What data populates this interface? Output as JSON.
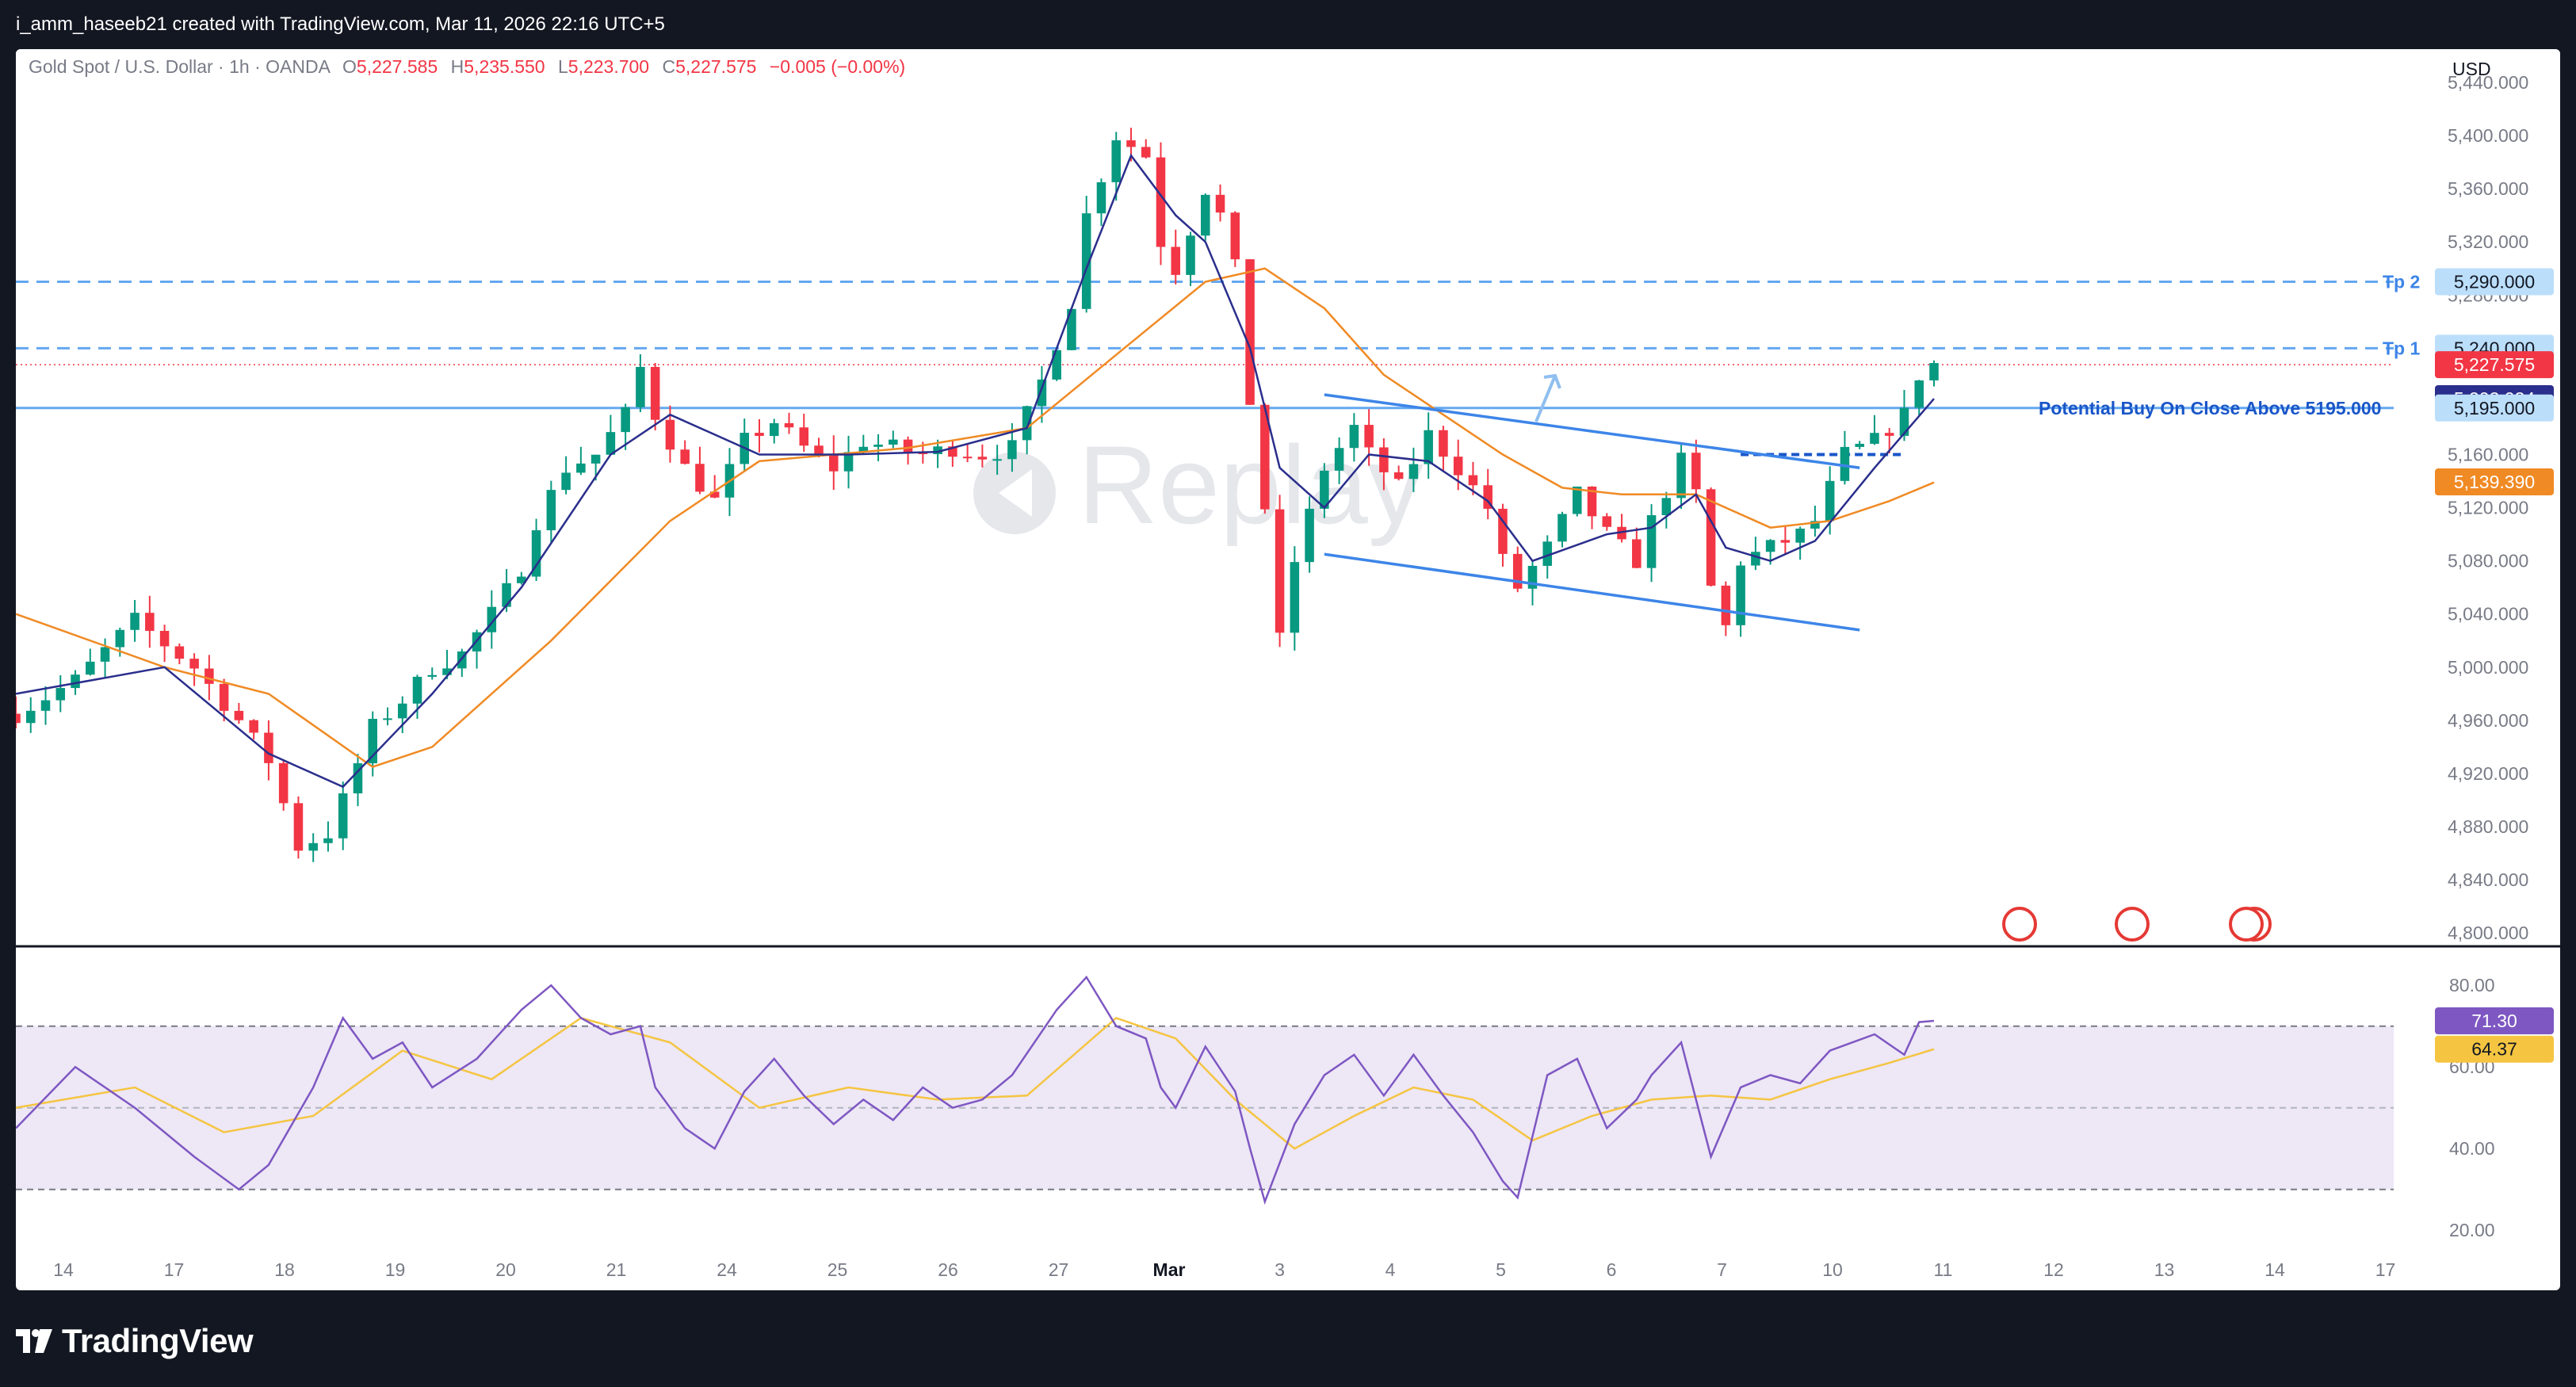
{
  "header": {
    "attribution": "i_amm_haseeb21 created with TradingView.com, Mar 11, 2026 22:16 UTC+5"
  },
  "branding": {
    "name": "TradingView"
  },
  "legend": {
    "symbol": "Gold Spot / U.S. Dollar · 1h · OANDA",
    "o_label": "O",
    "o_value": "5,227.585",
    "h_label": "H",
    "h_value": "5,235.550",
    "l_label": "L",
    "l_value": "5,223.700",
    "c_label": "C",
    "c_value": "5,227.575",
    "change": "−0.005 (−0.00%)"
  },
  "currency": "USD",
  "watermark": "Replay",
  "annotations": {
    "tp2": "Tp 2",
    "tp1": "Tp 1",
    "buy_note": "Potential Buy On Close Above 5195.000"
  },
  "price_badges": {
    "tp2": "5,290.000",
    "tp1": "5,240.000",
    "last": "5,227.575",
    "ema_fast": "5,202.034",
    "level": "5,195.000",
    "ema_slow": "5,139.390"
  },
  "rsi_badges": {
    "rsi": "71.30",
    "rsi_ma": "64.37"
  },
  "colors": {
    "background": "#131722",
    "panel": "#ffffff",
    "bull": "#089981",
    "bear": "#f23645",
    "ema_fast": "#2a2e8c",
    "ema_slow": "#f08a24",
    "level_line": "#64a8f0",
    "channel": "#3d85e8",
    "rsi_line": "#7e57c2",
    "rsi_ma": "#f5c542",
    "rsi_band": "#ede7f6"
  },
  "chart_data": {
    "type": "candlestick",
    "title": "Gold Spot / U.S. Dollar · 1h · OANDA",
    "x_ticks": [
      "14",
      "17",
      "18",
      "19",
      "20",
      "21",
      "24",
      "25",
      "26",
      "27",
      "Mar",
      "3",
      "4",
      "5",
      "6",
      "7",
      "10",
      "11",
      "12",
      "13",
      "14",
      "17"
    ],
    "price_ticks": [
      "5,440.000",
      "5,400.000",
      "5,360.000",
      "5,320.000",
      "5,280.000",
      "5,240.000",
      "5,200.000",
      "5,160.000",
      "5,120.000",
      "5,080.000",
      "5,040.000",
      "5,000.000",
      "4,960.000",
      "4,920.000",
      "4,880.000",
      "4,840.000",
      "4,800.000"
    ],
    "price_range": [
      4790,
      5465
    ],
    "price_path": [
      [
        0,
        4965
      ],
      [
        4,
        4990
      ],
      [
        8,
        5035
      ],
      [
        12,
        5000
      ],
      [
        15,
        4960
      ],
      [
        17,
        4930
      ],
      [
        19,
        4865
      ],
      [
        21,
        4875
      ],
      [
        22,
        4900
      ],
      [
        24,
        4955
      ],
      [
        26,
        4975
      ],
      [
        28,
        5000
      ],
      [
        30,
        5010
      ],
      [
        32,
        5040
      ],
      [
        34,
        5075
      ],
      [
        35,
        5110
      ],
      [
        37,
        5150
      ],
      [
        39,
        5160
      ],
      [
        41,
        5190
      ],
      [
        42,
        5225
      ],
      [
        43,
        5190
      ],
      [
        45,
        5150
      ],
      [
        47,
        5125
      ],
      [
        49,
        5170
      ],
      [
        51,
        5185
      ],
      [
        53,
        5165
      ],
      [
        55,
        5150
      ],
      [
        57,
        5170
      ],
      [
        59,
        5165
      ],
      [
        61,
        5160
      ],
      [
        63,
        5165
      ],
      [
        65,
        5160
      ],
      [
        67,
        5165
      ],
      [
        69,
        5215
      ],
      [
        71,
        5275
      ],
      [
        72,
        5340
      ],
      [
        74,
        5400
      ],
      [
        76,
        5385
      ],
      [
        77,
        5320
      ],
      [
        78,
        5300
      ],
      [
        80,
        5360
      ],
      [
        81,
        5340
      ],
      [
        82,
        5300
      ],
      [
        83,
        5200
      ],
      [
        84,
        5120
      ],
      [
        85,
        5020
      ],
      [
        86,
        5080
      ],
      [
        88,
        5150
      ],
      [
        90,
        5180
      ],
      [
        91,
        5160
      ],
      [
        93,
        5135
      ],
      [
        95,
        5175
      ],
      [
        97,
        5150
      ],
      [
        99,
        5120
      ],
      [
        100,
        5080
      ],
      [
        101,
        5060
      ],
      [
        103,
        5090
      ],
      [
        105,
        5130
      ],
      [
        107,
        5100
      ],
      [
        109,
        5080
      ],
      [
        110,
        5110
      ],
      [
        112,
        5155
      ],
      [
        113,
        5130
      ],
      [
        114,
        5060
      ],
      [
        115,
        5030
      ],
      [
        116,
        5080
      ],
      [
        118,
        5090
      ],
      [
        120,
        5100
      ],
      [
        121,
        5110
      ],
      [
        123,
        5160
      ],
      [
        125,
        5170
      ],
      [
        127,
        5190
      ],
      [
        128,
        5220
      ],
      [
        129,
        5228
      ]
    ],
    "ema_fast_path": [
      [
        0,
        4980
      ],
      [
        10,
        5000
      ],
      [
        17,
        4935
      ],
      [
        22,
        4910
      ],
      [
        28,
        4980
      ],
      [
        34,
        5060
      ],
      [
        40,
        5160
      ],
      [
        44,
        5190
      ],
      [
        50,
        5160
      ],
      [
        56,
        5160
      ],
      [
        62,
        5162
      ],
      [
        68,
        5180
      ],
      [
        72,
        5300
      ],
      [
        75,
        5385
      ],
      [
        78,
        5340
      ],
      [
        80,
        5320
      ],
      [
        83,
        5240
      ],
      [
        85,
        5150
      ],
      [
        88,
        5120
      ],
      [
        91,
        5160
      ],
      [
        95,
        5155
      ],
      [
        99,
        5125
      ],
      [
        102,
        5080
      ],
      [
        107,
        5100
      ],
      [
        110,
        5105
      ],
      [
        113,
        5130
      ],
      [
        115,
        5090
      ],
      [
        118,
        5080
      ],
      [
        121,
        5095
      ],
      [
        125,
        5150
      ],
      [
        129,
        5202
      ]
    ],
    "ema_slow_path": [
      [
        0,
        5040
      ],
      [
        10,
        5000
      ],
      [
        17,
        4980
      ],
      [
        24,
        4925
      ],
      [
        28,
        4940
      ],
      [
        36,
        5020
      ],
      [
        44,
        5110
      ],
      [
        50,
        5155
      ],
      [
        60,
        5165
      ],
      [
        68,
        5180
      ],
      [
        74,
        5235
      ],
      [
        80,
        5290
      ],
      [
        84,
        5300
      ],
      [
        88,
        5270
      ],
      [
        92,
        5220
      ],
      [
        96,
        5190
      ],
      [
        100,
        5160
      ],
      [
        104,
        5135
      ],
      [
        108,
        5130
      ],
      [
        113,
        5130
      ],
      [
        118,
        5105
      ],
      [
        122,
        5110
      ],
      [
        126,
        5125
      ],
      [
        129,
        5139
      ]
    ],
    "levels": [
      5290,
      5240,
      5195,
      5160
    ],
    "channel_upper": [
      [
        88,
        5205
      ],
      [
        124,
        5150
      ]
    ],
    "channel_lower": [
      [
        88,
        5085
      ],
      [
        124,
        5028
      ]
    ],
    "rsi_ticks": [
      "80.00",
      "60.00",
      "40.00",
      "20.00"
    ],
    "rsi_range": [
      15,
      88
    ],
    "rsi_bands": [
      70,
      30
    ],
    "rsi_path": [
      [
        0,
        45
      ],
      [
        4,
        60
      ],
      [
        8,
        50
      ],
      [
        12,
        38
      ],
      [
        15,
        30
      ],
      [
        17,
        36
      ],
      [
        20,
        55
      ],
      [
        22,
        72
      ],
      [
        24,
        62
      ],
      [
        26,
        66
      ],
      [
        28,
        55
      ],
      [
        31,
        62
      ],
      [
        34,
        74
      ],
      [
        36,
        80
      ],
      [
        38,
        72
      ],
      [
        40,
        68
      ],
      [
        42,
        70
      ],
      [
        43,
        55
      ],
      [
        45,
        45
      ],
      [
        47,
        40
      ],
      [
        49,
        54
      ],
      [
        51,
        62
      ],
      [
        53,
        53
      ],
      [
        55,
        46
      ],
      [
        57,
        52
      ],
      [
        59,
        47
      ],
      [
        61,
        55
      ],
      [
        63,
        50
      ],
      [
        65,
        52
      ],
      [
        67,
        58
      ],
      [
        70,
        74
      ],
      [
        72,
        82
      ],
      [
        74,
        70
      ],
      [
        76,
        67
      ],
      [
        77,
        55
      ],
      [
        78,
        50
      ],
      [
        80,
        65
      ],
      [
        82,
        54
      ],
      [
        83,
        40
      ],
      [
        84,
        27
      ],
      [
        86,
        46
      ],
      [
        88,
        58
      ],
      [
        90,
        63
      ],
      [
        92,
        53
      ],
      [
        94,
        63
      ],
      [
        96,
        53
      ],
      [
        98,
        44
      ],
      [
        100,
        32
      ],
      [
        101,
        28
      ],
      [
        103,
        58
      ],
      [
        105,
        62
      ],
      [
        107,
        45
      ],
      [
        109,
        52
      ],
      [
        110,
        58
      ],
      [
        112,
        66
      ],
      [
        113,
        52
      ],
      [
        114,
        38
      ],
      [
        116,
        55
      ],
      [
        118,
        58
      ],
      [
        120,
        56
      ],
      [
        122,
        64
      ],
      [
        125,
        68
      ],
      [
        127,
        63
      ],
      [
        128,
        71
      ],
      [
        129,
        71.3
      ]
    ],
    "rsi_ma_path": [
      [
        0,
        50
      ],
      [
        8,
        55
      ],
      [
        14,
        44
      ],
      [
        20,
        48
      ],
      [
        26,
        64
      ],
      [
        32,
        57
      ],
      [
        38,
        72
      ],
      [
        44,
        66
      ],
      [
        50,
        50
      ],
      [
        56,
        55
      ],
      [
        62,
        52
      ],
      [
        68,
        53
      ],
      [
        74,
        72
      ],
      [
        78,
        67
      ],
      [
        82,
        52
      ],
      [
        86,
        40
      ],
      [
        90,
        48
      ],
      [
        94,
        55
      ],
      [
        98,
        52
      ],
      [
        102,
        42
      ],
      [
        106,
        48
      ],
      [
        110,
        52
      ],
      [
        114,
        53
      ],
      [
        118,
        52
      ],
      [
        122,
        57
      ],
      [
        126,
        61
      ],
      [
        129,
        64.37
      ]
    ]
  }
}
